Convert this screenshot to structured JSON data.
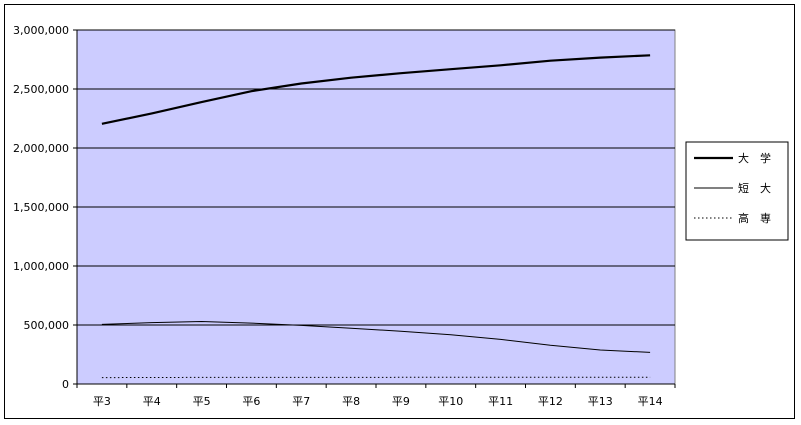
{
  "chart_data": {
    "type": "line",
    "categories": [
      "平3",
      "平4",
      "平5",
      "平6",
      "平7",
      "平8",
      "平9",
      "平10",
      "平11",
      "平12",
      "平13",
      "平14"
    ],
    "ylim": [
      0,
      3000000
    ],
    "yticks": [
      0,
      500000,
      1000000,
      1500000,
      2000000,
      2500000,
      3000000
    ],
    "ytick_labels": [
      "0",
      "500,000",
      "1,000,000",
      "1,500,000",
      "2,000,000",
      "2,500,000",
      "3,000,000"
    ],
    "grid": "horizontal",
    "legend_position": "right",
    "plot_background": "#ccccff",
    "series": [
      {
        "name": "大　学",
        "style": "thick",
        "color": "#000000",
        "values": [
          2205000,
          2293000,
          2389000,
          2481000,
          2547000,
          2596000,
          2634000,
          2668000,
          2701000,
          2740000,
          2766000,
          2786000
        ]
      },
      {
        "name": "短　大",
        "style": "thin",
        "color": "#000000",
        "values": [
          505000,
          520000,
          530000,
          516000,
          497000,
          473000,
          447000,
          417000,
          378000,
          328000,
          288000,
          268000
        ]
      },
      {
        "name": "高　専",
        "style": "dotted",
        "color": "#000000",
        "values": [
          54000,
          55000,
          56000,
          56000,
          56000,
          56000,
          57000,
          57000,
          57000,
          57000,
          57000,
          57000
        ]
      }
    ]
  }
}
